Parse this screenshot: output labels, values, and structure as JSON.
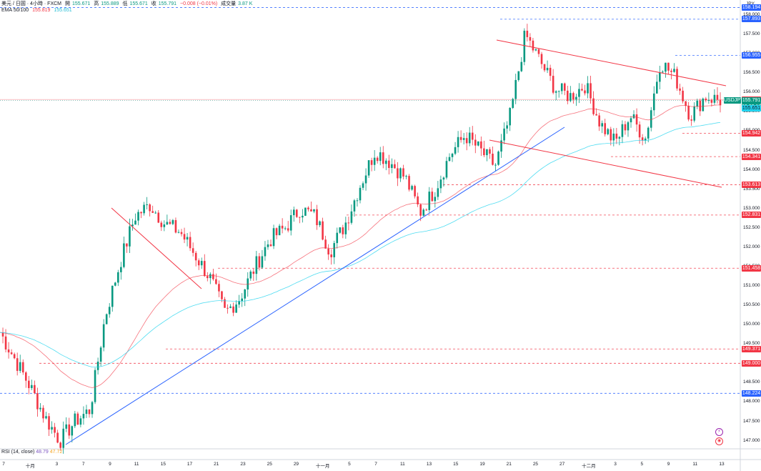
{
  "header": {
    "symbol": "美元 / 日圓 · 4小時 · FXCM",
    "o_label": "開",
    "o": "155.671",
    "h_label": "高",
    "h": "155.889",
    "l_label": "低",
    "l": "155.671",
    "c_label": "收",
    "c": "155.791",
    "change": "−0.008 (−0.01%)",
    "vol_label": "成交量",
    "vol": "3.87 K",
    "ema_label": "EMA 50/100",
    "ema50": "155.819",
    "ema100": "155.651"
  },
  "currency": "JPY",
  "rsi": {
    "label": "RSI (14, close)",
    "v1": "48.79",
    "v2": "47.72"
  },
  "markers": {
    "lightning": "⚡",
    "target": "◉"
  },
  "chart_data": {
    "type": "candlestick",
    "symbol": "USDJPY",
    "ylim": [
      146.9,
      158.5
    ],
    "y_ticks": [
      "158.500",
      "158.000",
      "157.500",
      "157.000",
      "156.500",
      "156.000",
      "155.500",
      "155.000",
      "154.500",
      "154.000",
      "153.500",
      "153.000",
      "152.500",
      "152.000",
      "151.500",
      "151.000",
      "150.500",
      "150.000",
      "149.500",
      "149.000",
      "148.500",
      "148.000",
      "147.500",
      "147.000"
    ],
    "x_ticks": [
      "7",
      "十月",
      "3",
      "7",
      "9",
      "11",
      "15",
      "17",
      "21",
      "23",
      "25",
      "29",
      "十一月",
      "5",
      "7",
      "11",
      "13",
      "15",
      "19",
      "21",
      "25",
      "27",
      "十二月",
      "3",
      "5",
      "9",
      "11",
      "13"
    ],
    "close_path": [
      149.8,
      149.1,
      148.4,
      147.6,
      147.0,
      147.5,
      147.8,
      150.2,
      151.6,
      152.8,
      153.1,
      152.6,
      152.4,
      151.8,
      151.2,
      150.3,
      150.7,
      151.5,
      152.2,
      152.5,
      153.0,
      152.8,
      151.9,
      152.6,
      153.6,
      154.5,
      154.2,
      153.8,
      152.9,
      153.5,
      154.4,
      154.9,
      154.5,
      154.1,
      155.4,
      157.5,
      156.8,
      156.1,
      155.9,
      156.2,
      155.2,
      154.7,
      155.4,
      154.8,
      156.8,
      156.4,
      155.4,
      155.9,
      155.79
    ],
    "levels": [
      {
        "value": "158.194",
        "color": "#2962ff",
        "style": "dashed"
      },
      {
        "value": "157.893",
        "color": "#2962ff",
        "style": "dashed"
      },
      {
        "value": "156.955",
        "color": "#2962ff",
        "style": "dashed"
      },
      {
        "value": "155.819",
        "color": "#f23645",
        "style": "line"
      },
      {
        "value": "154.942",
        "color": "#f23645",
        "style": "dashed"
      },
      {
        "value": "154.341",
        "color": "#f23645",
        "style": "dashed"
      },
      {
        "value": "153.613",
        "color": "#f23645",
        "style": "dashed"
      },
      {
        "value": "152.831",
        "color": "#f23645",
        "style": "dashed"
      },
      {
        "value": "151.458",
        "color": "#f23645",
        "style": "dashed"
      },
      {
        "value": "149.371",
        "color": "#f23645",
        "style": "dashed"
      },
      {
        "value": "149.000",
        "color": "#f23645",
        "style": "dashed"
      },
      {
        "value": "148.224",
        "color": "#2962ff",
        "style": "dashed"
      }
    ],
    "price_tag": {
      "symbol": "USDJPY",
      "price": "155.791",
      "countdown": "02:32:17"
    },
    "ema_tag": "155.651",
    "trendlines": [
      {
        "color": "#2962ff",
        "from": [
          "4",
          "146.95"
        ],
        "to": [
          "27",
          "155.3"
        ]
      },
      {
        "color": "#f23645",
        "from": [
          "9",
          "153.3"
        ],
        "to": [
          "21",
          "151.2"
        ]
      },
      {
        "color": "#f23645",
        "from": [
          "19",
          "158.0"
        ],
        "to": [
          "13",
          "156.7"
        ]
      },
      {
        "color": "#f23645",
        "from": [
          "19",
          "155.0"
        ],
        "to": [
          "13",
          "154.0"
        ]
      }
    ],
    "series": [
      {
        "name": "EMA 50",
        "color": "#f23645",
        "last": "155.819"
      },
      {
        "name": "EMA 100",
        "color": "#22d3ee",
        "last": "155.651"
      }
    ]
  }
}
